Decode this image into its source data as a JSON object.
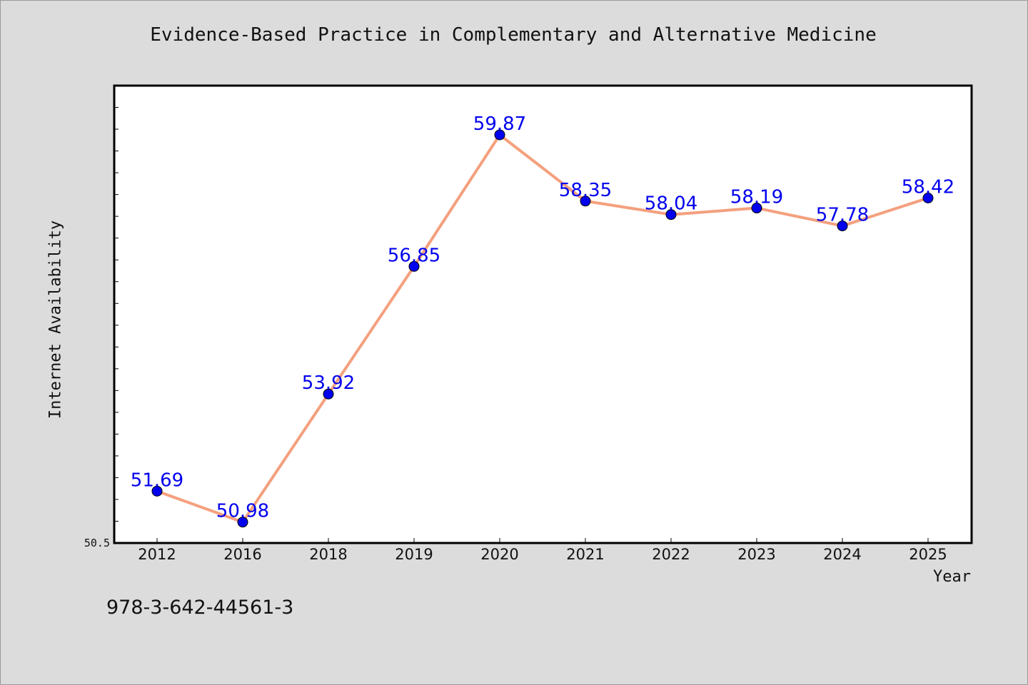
{
  "chart_data": {
    "type": "line",
    "title": "Evidence-Based Practice in Complementary and Alternative Medicine",
    "xlabel": "Year",
    "ylabel": "Internet Availability",
    "categories": [
      "2012",
      "2016",
      "2018",
      "2019",
      "2020",
      "2021",
      "2022",
      "2023",
      "2024",
      "2025"
    ],
    "series": [
      {
        "values": [
          51.69,
          50.98,
          53.92,
          56.85,
          59.87,
          58.35,
          58.04,
          58.19,
          57.78,
          58.42
        ],
        "data_labels": [
          "51.69",
          "50.98",
          "53.92",
          "56.85",
          "59.87",
          "58.35",
          "58.04",
          "58.19",
          "57.78",
          "58.42"
        ]
      }
    ],
    "ylim": [
      50.5,
      61.0
    ],
    "y_tick_labels": [
      "50.5"
    ],
    "grid": false,
    "line_color": "#f4a07e",
    "marker_color": "#0000ee",
    "label_color": "#0000ee"
  },
  "annotation": "978-3-642-44561-3"
}
